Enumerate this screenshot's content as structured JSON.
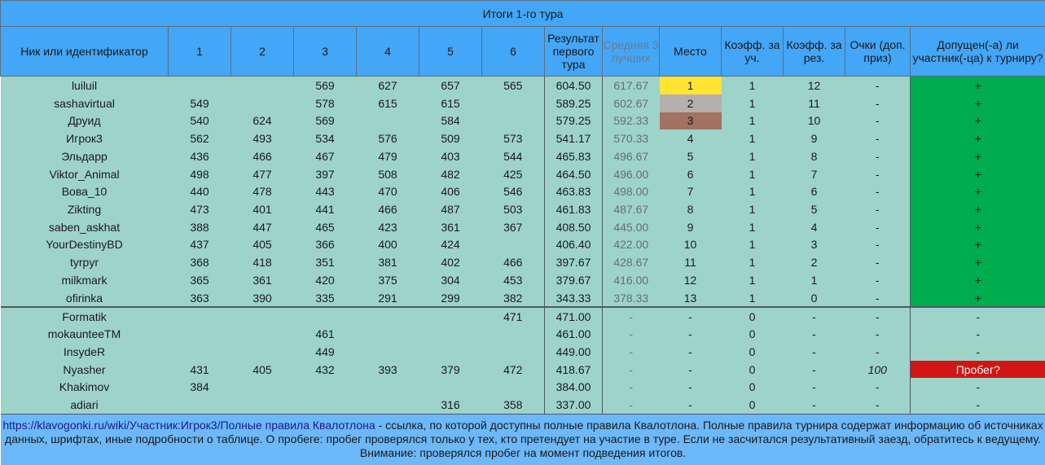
{
  "title": "Итоги 1-го тура",
  "headers": [
    "Ник или идентификатор",
    "1",
    "2",
    "3",
    "4",
    "5",
    "6",
    "Результат первого тура",
    "Средняя 3 лучших",
    "Место",
    "Коэфф. за уч.",
    "Коэфф. за рез.",
    "Очки (доп. приз)",
    "Допущен(-а) ли участник(-ца) к турниру?"
  ],
  "rows": [
    {
      "cells": [
        "luiluil",
        "",
        "",
        "569",
        "627",
        "657",
        "565",
        "604.50",
        "617.67",
        "1",
        "1",
        "12",
        "-",
        "+"
      ],
      "place_color": "#ffe433",
      "status_color": "#00ac4d"
    },
    {
      "cells": [
        "sashavirtual",
        "549",
        "",
        "578",
        "615",
        "615",
        "",
        "589.25",
        "602.67",
        "2",
        "1",
        "11",
        "-",
        "+"
      ],
      "place_color": "#b3b1ad",
      "status_color": "#00ac4d"
    },
    {
      "cells": [
        "Друид",
        "540",
        "624",
        "569",
        "",
        "584",
        "",
        "579.25",
        "592.33",
        "3",
        "1",
        "10",
        "-",
        "+"
      ],
      "place_color": "#a37260",
      "status_color": "#00ac4d"
    },
    {
      "cells": [
        "Игрок3",
        "562",
        "493",
        "534",
        "576",
        "509",
        "573",
        "541.17",
        "570.33",
        "4",
        "1",
        "9",
        "-",
        "+"
      ],
      "status_color": "#00ac4d"
    },
    {
      "cells": [
        "Эльдарр",
        "436",
        "466",
        "467",
        "479",
        "403",
        "544",
        "465.83",
        "496.67",
        "5",
        "1",
        "8",
        "-",
        "+"
      ],
      "status_color": "#00ac4d"
    },
    {
      "cells": [
        "Viktor_Animal",
        "498",
        "477",
        "397",
        "508",
        "482",
        "425",
        "464.50",
        "496.00",
        "6",
        "1",
        "7",
        "-",
        "+"
      ],
      "status_color": "#00ac4d"
    },
    {
      "cells": [
        "Вова_10",
        "440",
        "478",
        "443",
        "470",
        "406",
        "546",
        "463.83",
        "498.00",
        "7",
        "1",
        "6",
        "-",
        "+"
      ],
      "status_color": "#00ac4d"
    },
    {
      "cells": [
        "Zikting",
        "473",
        "401",
        "441",
        "466",
        "487",
        "503",
        "461.83",
        "487.67",
        "8",
        "1",
        "5",
        "-",
        "+"
      ],
      "status_color": "#00ac4d"
    },
    {
      "cells": [
        "saben_askhat",
        "388",
        "447",
        "465",
        "423",
        "361",
        "367",
        "408.50",
        "445.00",
        "9",
        "1",
        "4",
        "-",
        "+"
      ],
      "status_color": "#00ac4d"
    },
    {
      "cells": [
        "YourDestinyBD",
        "437",
        "405",
        "366",
        "400",
        "424",
        "",
        "406.40",
        "422.00",
        "10",
        "1",
        "3",
        "-",
        "+"
      ],
      "status_color": "#00ac4d"
    },
    {
      "cells": [
        "tyrpyr",
        "368",
        "418",
        "351",
        "381",
        "402",
        "466",
        "397.67",
        "428.67",
        "11",
        "1",
        "2",
        "-",
        "+"
      ],
      "status_color": "#00ac4d"
    },
    {
      "cells": [
        "milkmark",
        "365",
        "361",
        "420",
        "375",
        "304",
        "453",
        "379.67",
        "416.00",
        "12",
        "1",
        "1",
        "-",
        "+"
      ],
      "status_color": "#00ac4d"
    },
    {
      "cells": [
        "ofirinka",
        "363",
        "390",
        "335",
        "291",
        "299",
        "382",
        "343.33",
        "378.33",
        "13",
        "1",
        "0",
        "-",
        "+"
      ],
      "status_color": "#00ac4d"
    },
    {
      "cells": [
        "Formatik",
        "",
        "",
        "",
        "",
        "",
        "471",
        "471.00",
        "-",
        "-",
        "0",
        "-",
        "-",
        "-"
      ],
      "group_start": true
    },
    {
      "cells": [
        "mokaunteeTM",
        "",
        "",
        "461",
        "",
        "",
        "",
        "461.00",
        "-",
        "-",
        "0",
        "-",
        "-",
        "-"
      ]
    },
    {
      "cells": [
        "InsydeR",
        "",
        "",
        "449",
        "",
        "",
        "",
        "449.00",
        "-",
        "-",
        "0",
        "-",
        "-",
        "-"
      ]
    },
    {
      "cells": [
        "Nyasher",
        "431",
        "405",
        "432",
        "393",
        "379",
        "472",
        "418.67",
        "-",
        "-",
        "0",
        "-",
        "100",
        "Пробег?"
      ],
      "status_color": "#d11414",
      "points_italic": true
    },
    {
      "cells": [
        "Khakimov",
        "384",
        "",
        "",
        "",
        "",
        "",
        "384.00",
        "-",
        "-",
        "0",
        "-",
        "-",
        "-"
      ]
    },
    {
      "cells": [
        "adiari",
        "",
        "",
        "",
        "",
        "316",
        "358",
        "337.00",
        "-",
        "-",
        "0",
        "-",
        "-",
        "-"
      ]
    }
  ],
  "footer": {
    "link": "https://klavogonki.ru/wiki/Участник:Игрок3/Полные правила Квалотлона",
    "text": " - ссылка, по которой доступны полные правила Квалотлона. Полные правила турнира содержат информацию об источниках данных, шрифтах, иные подробности о таблице. О пробеге: пробег проверялся только у тех, кто претендует на участие в туре. Если не засчитался результативный заезд, обратитесь к ведущему. Внимание: проверялся пробег на момент подведения итогов."
  },
  "colors": {
    "header_bg": "#43a6f7",
    "row_bg": "#9ed3ca",
    "footer_bg": "#6cb8f8",
    "gold": "#ffe433",
    "silver": "#b3b1ad",
    "bronze": "#a37260",
    "admitted": "#00ac4d",
    "warning": "#d11414"
  }
}
